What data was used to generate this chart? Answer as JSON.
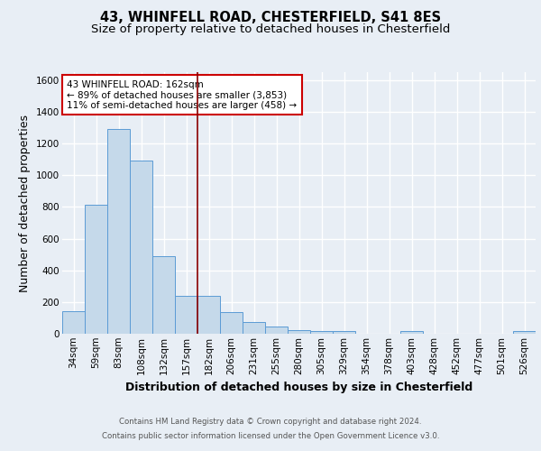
{
  "title1": "43, WHINFELL ROAD, CHESTERFIELD, S41 8ES",
  "title2": "Size of property relative to detached houses in Chesterfield",
  "xlabel": "Distribution of detached houses by size in Chesterfield",
  "ylabel": "Number of detached properties",
  "footnote1": "Contains HM Land Registry data © Crown copyright and database right 2024.",
  "footnote2": "Contains public sector information licensed under the Open Government Licence v3.0.",
  "bar_labels": [
    "34sqm",
    "59sqm",
    "83sqm",
    "108sqm",
    "132sqm",
    "157sqm",
    "182sqm",
    "206sqm",
    "231sqm",
    "255sqm",
    "280sqm",
    "305sqm",
    "329sqm",
    "354sqm",
    "378sqm",
    "403sqm",
    "428sqm",
    "452sqm",
    "477sqm",
    "501sqm",
    "526sqm"
  ],
  "bar_values": [
    140,
    815,
    1290,
    1095,
    490,
    240,
    240,
    135,
    75,
    45,
    25,
    15,
    15,
    0,
    0,
    15,
    0,
    0,
    0,
    0,
    15
  ],
  "bar_color": "#c5d9ea",
  "bar_edgecolor": "#5b9bd5",
  "vline_x": 5.5,
  "vline_color": "#8b0000",
  "annotation_text": "43 WHINFELL ROAD: 162sqm\n← 89% of detached houses are smaller (3,853)\n11% of semi-detached houses are larger (458) →",
  "annotation_box_color": "#ffffff",
  "annotation_box_edgecolor": "#cc0000",
  "ylim": [
    0,
    1650
  ],
  "yticks": [
    0,
    200,
    400,
    600,
    800,
    1000,
    1200,
    1400,
    1600
  ],
  "bg_color": "#e8eef5",
  "plot_bg_color": "#e8eef5",
  "grid_color": "#ffffff",
  "title1_fontsize": 10.5,
  "title2_fontsize": 9.5,
  "axis_label_fontsize": 9,
  "tick_fontsize": 7.5,
  "footnote_fontsize": 6.2
}
